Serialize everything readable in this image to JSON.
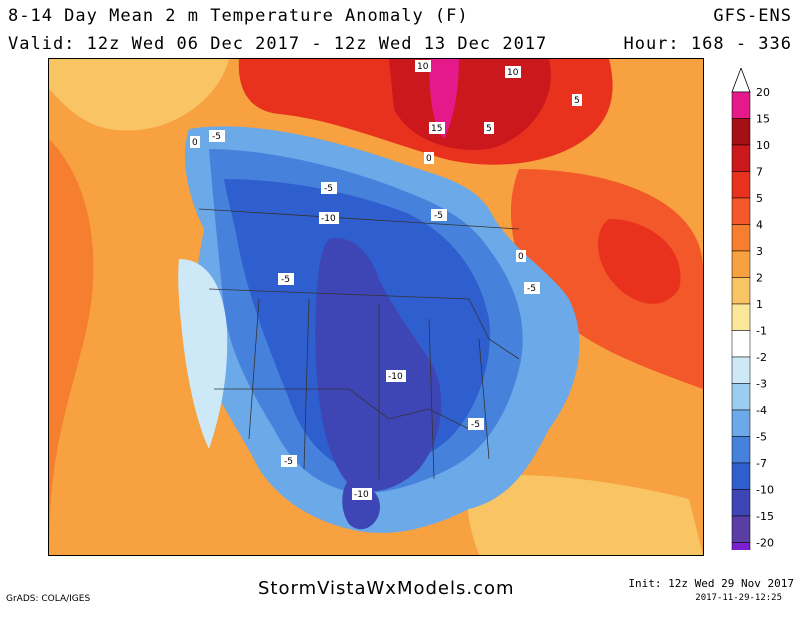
{
  "header": {
    "title": "8-14 Day Mean 2 m Temperature Anomaly (F)",
    "model": "GFS-ENS",
    "valid": "Valid: 12z Wed 06 Dec 2017 - 12z Wed 13 Dec 2017",
    "hour": "Hour: 168 - 336"
  },
  "colorbar": {
    "levels": [
      "20",
      "15",
      "10",
      "7",
      "5",
      "4",
      "3",
      "2",
      "1",
      "-1",
      "-2",
      "-3",
      "-4",
      "-5",
      "-7",
      "-10",
      "-15",
      "-20"
    ],
    "colors": [
      "#e6198a",
      "#a50f15",
      "#cb181d",
      "#e8321e",
      "#f3582a",
      "#f57f2f",
      "#f7a140",
      "#f9c464",
      "#fbe79a",
      "#ffffff",
      "#cde9f7",
      "#9ccdf1",
      "#6ba9e8",
      "#4682dc",
      "#2f5fcf",
      "#3e46b5",
      "#5a3ea4",
      "#7b1fd0",
      "#9b12e6"
    ]
  },
  "map": {
    "region": "North America",
    "contour_labels": [
      "-5",
      "-5",
      "-10",
      "-5",
      "-5",
      "-5",
      "-10",
      "-5",
      "-5",
      "-10",
      "0",
      "0",
      "0",
      "5",
      "5",
      "10",
      "10",
      "15"
    ]
  },
  "footer": {
    "credit": "GrADS: COLA/IGES",
    "site": "StormVistaWxModels.com",
    "init": "Init: 12z Wed 29 Nov 2017",
    "timestamp": "2017-11-29-12:25"
  }
}
